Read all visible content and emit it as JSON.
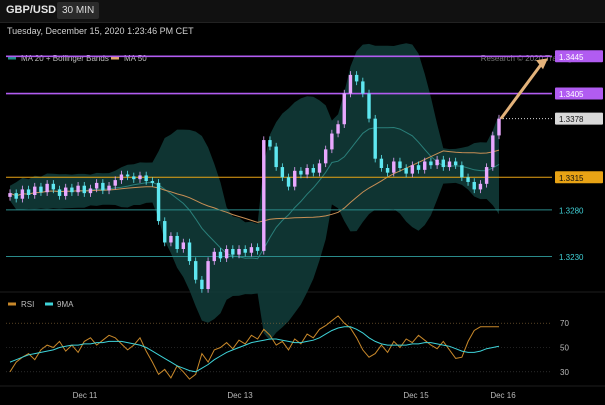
{
  "header": {
    "symbol": "GBP/USD",
    "timeframe": "30 MIN",
    "timestamp": "Tuesday, December 15, 2020 1:23:46 PM CET",
    "credit": "Research © 2020 Trading Central"
  },
  "chart_data": [
    {
      "type": "candlestick",
      "title": "GBP/USD",
      "timeframe": "30 MIN",
      "x_ticks": [
        "Dec 11",
        "Dec 13",
        "Dec 15",
        "Dec 16"
      ],
      "ylim": [
        1.318,
        1.347
      ],
      "legend": [
        {
          "name": "MA 20 + Bollinger Bands",
          "color": "#1f8f8a"
        },
        {
          "name": "MA 50",
          "color": "#e0a86b"
        }
      ],
      "levels": [
        {
          "label": "1.3445",
          "value": 1.3445,
          "color": "#b15cf1",
          "style": "solid"
        },
        {
          "label": "1.3405",
          "value": 1.3405,
          "color": "#b15cf1",
          "style": "solid"
        },
        {
          "label": "1.3378",
          "value": 1.3378,
          "color": "#d9d9d9",
          "style": "dotted"
        },
        {
          "label": "1.3315",
          "value": 1.3315,
          "color": "#e8a315",
          "style": "solid"
        },
        {
          "label": "1.3280",
          "value": 1.328,
          "color": "#2a8a8a",
          "style": "solid"
        },
        {
          "label": "1.3230",
          "value": 1.323,
          "color": "#2a8a8a",
          "style": "solid"
        }
      ],
      "candle_colors": {
        "up": "#e9a8ff",
        "down": "#5fe7f0"
      },
      "forecast_arrow": {
        "from": 1.3378,
        "to": 1.3445,
        "color": "#e3b27a"
      },
      "close_series": [
        1.3298,
        1.3292,
        1.3302,
        1.3296,
        1.3305,
        1.3299,
        1.3308,
        1.3302,
        1.3295,
        1.3304,
        1.3299,
        1.3306,
        1.3298,
        1.3303,
        1.3309,
        1.3301,
        1.3306,
        1.3312,
        1.3318,
        1.3316,
        1.3313,
        1.3317,
        1.3311,
        1.3309,
        1.3268,
        1.3245,
        1.3252,
        1.3238,
        1.3245,
        1.3225,
        1.3205,
        1.3195,
        1.3225,
        1.3235,
        1.3228,
        1.3238,
        1.3232,
        1.3238,
        1.3234,
        1.324,
        1.3236,
        1.3355,
        1.3348,
        1.3326,
        1.3315,
        1.3305,
        1.3322,
        1.3318,
        1.3325,
        1.332,
        1.333,
        1.3345,
        1.3362,
        1.3372,
        1.3405,
        1.3425,
        1.3418,
        1.3405,
        1.3378,
        1.3335,
        1.3325,
        1.332,
        1.3332,
        1.3325,
        1.3319,
        1.3328,
        1.3323,
        1.3332,
        1.3328,
        1.3334,
        1.3326,
        1.3332,
        1.3328,
        1.3315,
        1.331,
        1.3302,
        1.3308,
        1.3326,
        1.336,
        1.3378
      ],
      "rsi": {
        "legend": [
          {
            "name": "RSI",
            "color": "#c8882a"
          },
          {
            "name": "9MA",
            "color": "#3ed3d9"
          }
        ],
        "ylim": [
          20,
          80
        ],
        "y_ticks": [
          70,
          50,
          30
        ],
        "values": [
          30,
          38,
          42,
          45,
          40,
          48,
          52,
          50,
          55,
          47,
          52,
          46,
          55,
          58,
          52,
          56,
          60,
          58,
          53,
          48,
          52,
          58,
          47,
          38,
          28,
          32,
          25,
          35,
          30,
          24,
          28,
          45,
          38,
          48,
          50,
          54,
          49,
          56,
          53,
          60,
          57,
          65,
          60,
          52,
          55,
          48,
          57,
          53,
          61,
          58,
          65,
          68,
          72,
          76,
          70,
          66,
          58,
          48,
          42,
          45,
          52,
          46,
          55,
          50,
          57,
          54,
          60,
          56,
          52,
          49,
          55,
          48,
          41,
          42,
          55,
          64,
          67,
          67,
          67,
          67
        ],
        "ma9": [
          38,
          40,
          42,
          44,
          45,
          46,
          47,
          48,
          50,
          51,
          52,
          52,
          53,
          53,
          54,
          54,
          55,
          55,
          55,
          54,
          53,
          52,
          50,
          47,
          44,
          41,
          38,
          35,
          33,
          31,
          30,
          33,
          36,
          40,
          43,
          46,
          48,
          50,
          52,
          54,
          55,
          56,
          57,
          57,
          56,
          55,
          54,
          54,
          55,
          56,
          58,
          61,
          64,
          66,
          67,
          67,
          65,
          62,
          58,
          55,
          53,
          52,
          52,
          52,
          52,
          53,
          53,
          54,
          54,
          53,
          52,
          51,
          49,
          47,
          46,
          46,
          47,
          49,
          50,
          51
        ]
      }
    }
  ]
}
